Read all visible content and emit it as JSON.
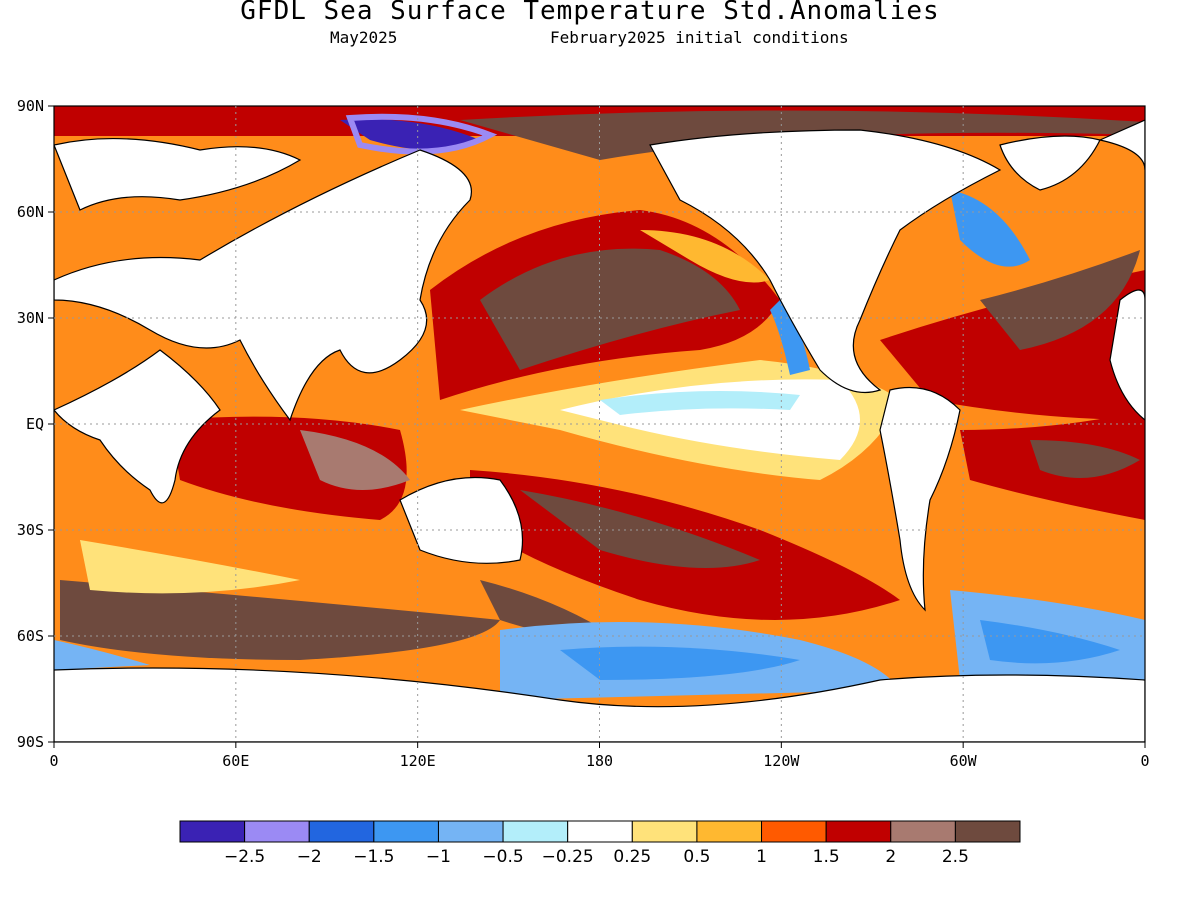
{
  "title": "GFDL Sea Surface Temperature Std.Anomalies",
  "subtitle_left": "May2025",
  "subtitle_right": "February2025 initial conditions",
  "map": {
    "projection": "equirectangular",
    "lon_range": [
      0,
      360
    ],
    "lat_range": [
      -90,
      90
    ],
    "lat_ticks": [
      "90N",
      "60N",
      "30N",
      "EQ",
      "30S",
      "60S",
      "90S"
    ],
    "lon_ticks": [
      "0",
      "60E",
      "120E",
      "180",
      "120W",
      "60W",
      "0"
    ],
    "gridlines": "dotted"
  },
  "colorbar": {
    "colors": [
      "#3a22b4",
      "#9b8af4",
      "#2266e0",
      "#3d97f2",
      "#75b4f4",
      "#b3eefa",
      "#ffffff",
      "#ffe27a",
      "#ffb830",
      "#ff5a00",
      "#c00000",
      "#a87a70",
      "#6e4a3e"
    ],
    "labels": [
      "-2.5",
      "-2",
      "-1.5",
      "-1",
      "-0.5",
      "-0.25",
      "0.25",
      "0.5",
      "1",
      "1.5",
      "2",
      "2.5"
    ]
  }
}
